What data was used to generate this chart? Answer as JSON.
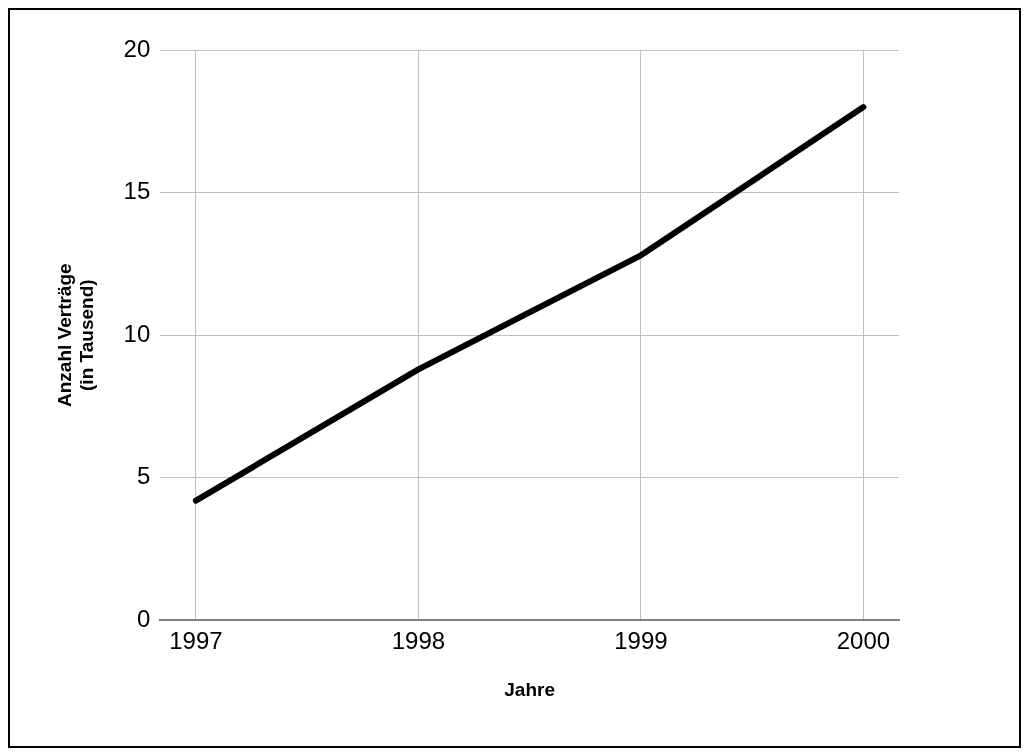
{
  "chart_data": {
    "type": "line",
    "xlabel": "Jahre",
    "ylabel": "Anzahl Verträge (in Tausend)",
    "x": [
      1997,
      1998,
      1999,
      2000
    ],
    "xlim": [
      1996.84,
      2000.16
    ],
    "xticks": [
      1997,
      1998,
      1999,
      2000
    ],
    "ylim": [
      0,
      20
    ],
    "yticks": [
      0,
      5,
      10,
      15,
      20
    ],
    "grid": true,
    "legend": false,
    "marker": "none",
    "line_style": "solid",
    "series": [
      {
        "color": "#000000",
        "values": [
          4.2,
          8.8,
          12.8,
          18
        ]
      }
    ]
  }
}
